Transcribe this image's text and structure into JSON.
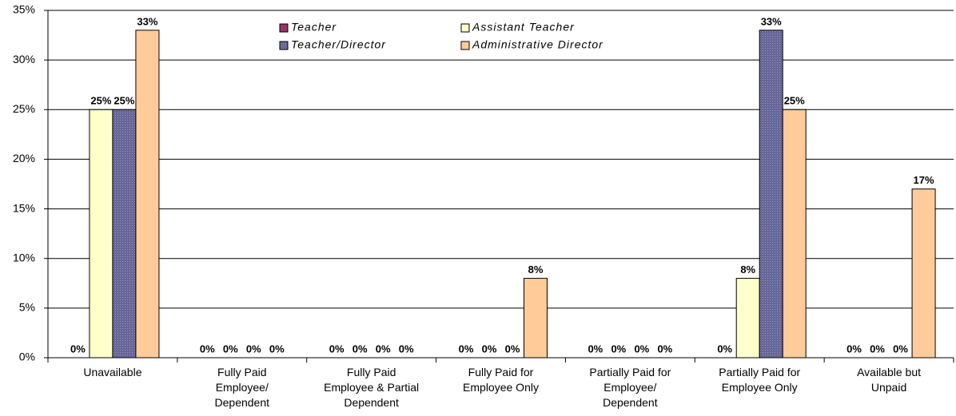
{
  "chart_data": {
    "type": "bar",
    "categories": [
      "Unavailable",
      "Fully Paid Employee/ Dependent",
      "Fully Paid Employee & Partial Dependent",
      "Fully Paid for Employee Only",
      "Partially Paid for Employee/ Dependent",
      "Partially Paid for Employee Only",
      "Available but Unpaid"
    ],
    "series": [
      {
        "name": "Teacher",
        "color": "#993366",
        "values": [
          0,
          0,
          0,
          0,
          0,
          0,
          0
        ],
        "value_labels": [
          "0%",
          "0%",
          "0%",
          "0%",
          "0%",
          "0%",
          "0%"
        ]
      },
      {
        "name": "Assistant Teacher",
        "color": "#ffffcc",
        "values": [
          25,
          0,
          0,
          0,
          0,
          8,
          0
        ],
        "value_labels": [
          "25%",
          "0%",
          "0%",
          "0%",
          "0%",
          "8%",
          "0%"
        ]
      },
      {
        "name": "Teacher/Director",
        "color": "#666699",
        "values": [
          25,
          0,
          0,
          0,
          0,
          33,
          0
        ],
        "value_labels": [
          "25%",
          "0%",
          "0%",
          "0%",
          "0%",
          "33%",
          "0%"
        ]
      },
      {
        "name": "Administrative Director",
        "color": "#ffcc99",
        "values": [
          33,
          0,
          0,
          8,
          0,
          25,
          17
        ],
        "value_labels": [
          "33%",
          "0%",
          "0%",
          "8%",
          "0%",
          "25%",
          "17%"
        ]
      }
    ],
    "ylim": [
      0,
      35
    ],
    "yticks": [
      {
        "value": 0,
        "label": "0%"
      },
      {
        "value": 5,
        "label": "5%"
      },
      {
        "value": 10,
        "label": "10%"
      },
      {
        "value": 15,
        "label": "15%"
      },
      {
        "value": 20,
        "label": "20%"
      },
      {
        "value": 25,
        "label": "25%"
      },
      {
        "value": 30,
        "label": "30%"
      },
      {
        "value": 35,
        "label": "35%"
      }
    ],
    "grid": true,
    "legend": "top"
  }
}
